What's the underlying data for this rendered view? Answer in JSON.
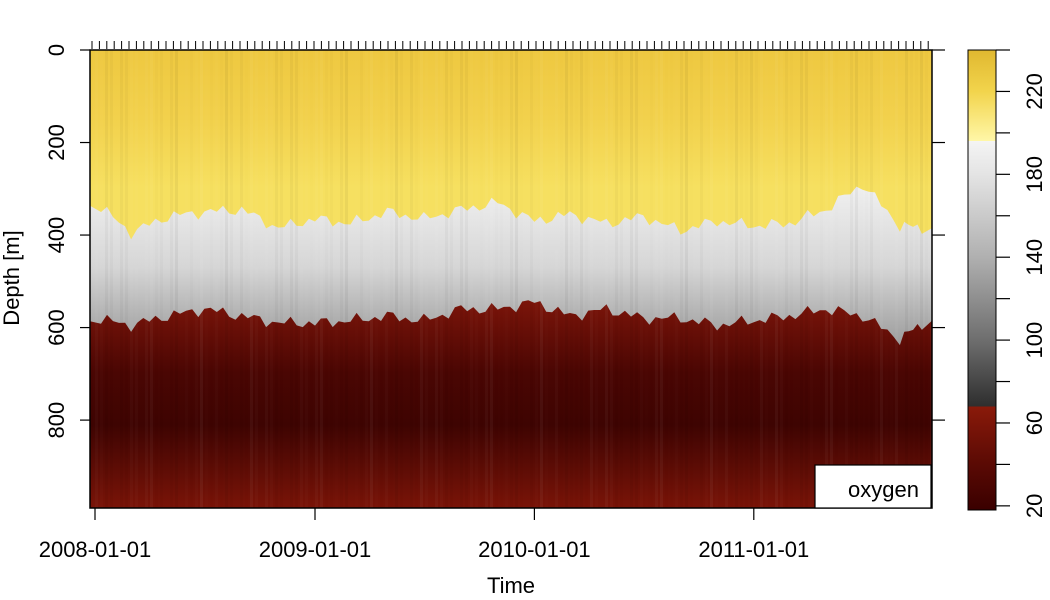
{
  "chart_data": {
    "type": "heatmap",
    "title": "",
    "xlabel": "Time",
    "ylabel": "Depth [m]",
    "variable_label": "oxygen",
    "x_range": [
      "2008-01-01",
      "2011-10-15"
    ],
    "y_range": [
      0,
      990
    ],
    "y_reversed": true,
    "x_ticks": [
      "2008-01-01",
      "2009-01-01",
      "2010-01-01",
      "2011-01-01"
    ],
    "y_ticks": [
      0,
      200,
      400,
      600,
      800
    ],
    "colorbar": {
      "range": [
        18,
        240
      ],
      "labeled_ticks": [
        20,
        60,
        100,
        140,
        180,
        220
      ],
      "minor_ticks": [
        40,
        80,
        120,
        160,
        200,
        240
      ],
      "stops": [
        {
          "value": 18,
          "color": "#3a0000"
        },
        {
          "value": 40,
          "color": "#5a0a04"
        },
        {
          "value": 68,
          "color": "#8a1a0a"
        },
        {
          "value": 68.01,
          "color": "#2e2e2e"
        },
        {
          "value": 100,
          "color": "#6e6e6e"
        },
        {
          "value": 140,
          "color": "#b0b0b0"
        },
        {
          "value": 180,
          "color": "#e4e4e4"
        },
        {
          "value": 196,
          "color": "#f4f4f4"
        },
        {
          "value": 196.01,
          "color": "#fff7a8"
        },
        {
          "value": 220,
          "color": "#f2d44c"
        },
        {
          "value": 240,
          "color": "#e0b830"
        }
      ]
    },
    "layers": {
      "upper_boundary_depth_m": {
        "x": [
          "2008-01-01",
          "2008-03-01",
          "2008-05-01",
          "2008-07-01",
          "2008-09-01",
          "2008-11-01",
          "2009-01-01",
          "2009-03-01",
          "2009-05-01",
          "2009-07-01",
          "2009-09-01",
          "2009-11-01",
          "2010-01-01",
          "2010-03-01",
          "2010-05-01",
          "2010-07-01",
          "2010-09-01",
          "2010-11-01",
          "2011-01-01",
          "2011-03-01",
          "2011-05-01",
          "2011-07-01",
          "2011-09-01",
          "2011-10-15"
        ],
        "y": [
          330,
          395,
          360,
          350,
          345,
          385,
          365,
          375,
          350,
          365,
          345,
          330,
          370,
          355,
          375,
          360,
          390,
          370,
          380,
          375,
          345,
          290,
          380,
          385
        ]
      },
      "lower_boundary_depth_m": {
        "x": [
          "2008-01-01",
          "2008-03-01",
          "2008-05-01",
          "2008-07-01",
          "2008-09-01",
          "2008-11-01",
          "2009-01-01",
          "2009-03-01",
          "2009-05-01",
          "2009-07-01",
          "2009-09-01",
          "2009-11-01",
          "2010-01-01",
          "2010-03-01",
          "2010-05-01",
          "2010-07-01",
          "2010-09-01",
          "2010-11-01",
          "2011-01-01",
          "2011-03-01",
          "2011-05-01",
          "2011-07-01",
          "2011-09-01",
          "2011-10-15"
        ],
        "y": [
          580,
          595,
          575,
          560,
          575,
          590,
          590,
          585,
          575,
          585,
          560,
          560,
          545,
          575,
          560,
          580,
          580,
          595,
          585,
          575,
          560,
          575,
          625,
          585
        ]
      }
    },
    "legend_position": "bottom-right",
    "rug_ticks_on_top": true
  }
}
